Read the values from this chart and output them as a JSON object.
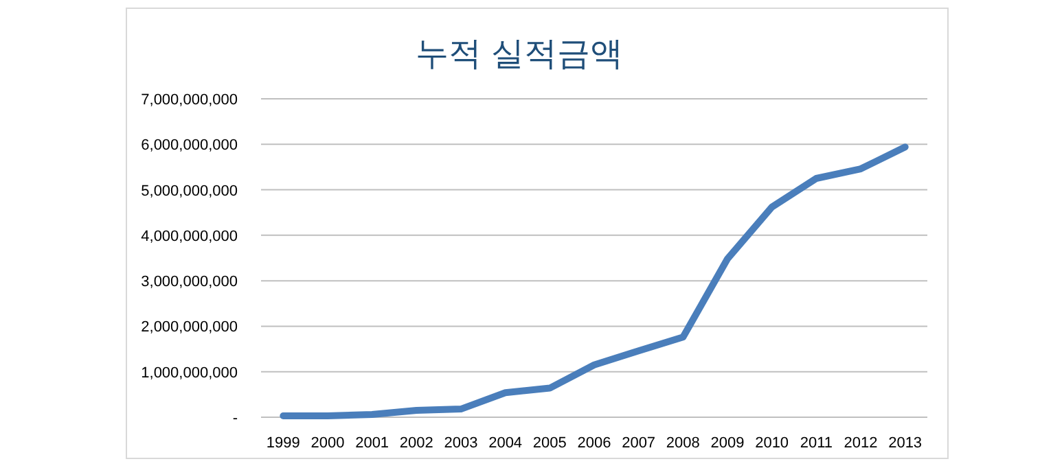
{
  "chart_data": {
    "type": "line",
    "title": "누적 실적금액",
    "categories": [
      "1999",
      "2000",
      "2001",
      "2002",
      "2003",
      "2004",
      "2005",
      "2006",
      "2007",
      "2008",
      "2009",
      "2010",
      "2011",
      "2012",
      "2013"
    ],
    "series": [
      {
        "color": "#4a7ebb",
        "values": [
          30000000,
          30000000,
          60000000,
          150000000,
          180000000,
          540000000,
          640000000,
          1150000000,
          1460000000,
          1760000000,
          3480000000,
          4620000000,
          5250000000,
          5460000000,
          5940000000
        ]
      }
    ],
    "ylim": [
      0,
      7000000000
    ],
    "yticks": [
      {
        "value": 0,
        "label": "-"
      },
      {
        "value": 1000000000,
        "label": "1,000,000,000"
      },
      {
        "value": 2000000000,
        "label": "2,000,000,000"
      },
      {
        "value": 3000000000,
        "label": "3,000,000,000"
      },
      {
        "value": 4000000000,
        "label": "4,000,000,000"
      },
      {
        "value": 5000000000,
        "label": "5,000,000,000"
      },
      {
        "value": 6000000000,
        "label": "6,000,000,000"
      },
      {
        "value": 7000000000,
        "label": "7,000,000,000"
      }
    ],
    "grid": "y",
    "marker": "none",
    "line_style": "solid"
  }
}
